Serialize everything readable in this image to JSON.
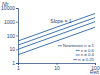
{
  "chart_data": {
    "type": "line",
    "x_label": "Reb",
    "y_label": "Nb",
    "annotations": [
      "Slope = 1"
    ],
    "x": [
      1,
      100
    ],
    "series": [
      {
        "name": "Newtonian n = 1",
        "color": "#2a64a8",
        "values": [
          40,
          4000
        ]
      },
      {
        "name": "n = 0.6",
        "color": "#2a64a8",
        "values": [
          20,
          2000
        ]
      },
      {
        "name": "n = 0.4",
        "color": "#2a64a8",
        "values": [
          10,
          1000
        ]
      },
      {
        "name": "n = 0.25",
        "color": "#2a64a8",
        "values": [
          4,
          400
        ]
      }
    ],
    "xlim": [
      1,
      100
    ],
    "ylim": [
      1,
      10000
    ],
    "xticks": [
      1,
      10,
      100
    ],
    "yticks": [
      1,
      10,
      100,
      1000,
      10000
    ],
    "log": true,
    "legend": "lower right"
  }
}
